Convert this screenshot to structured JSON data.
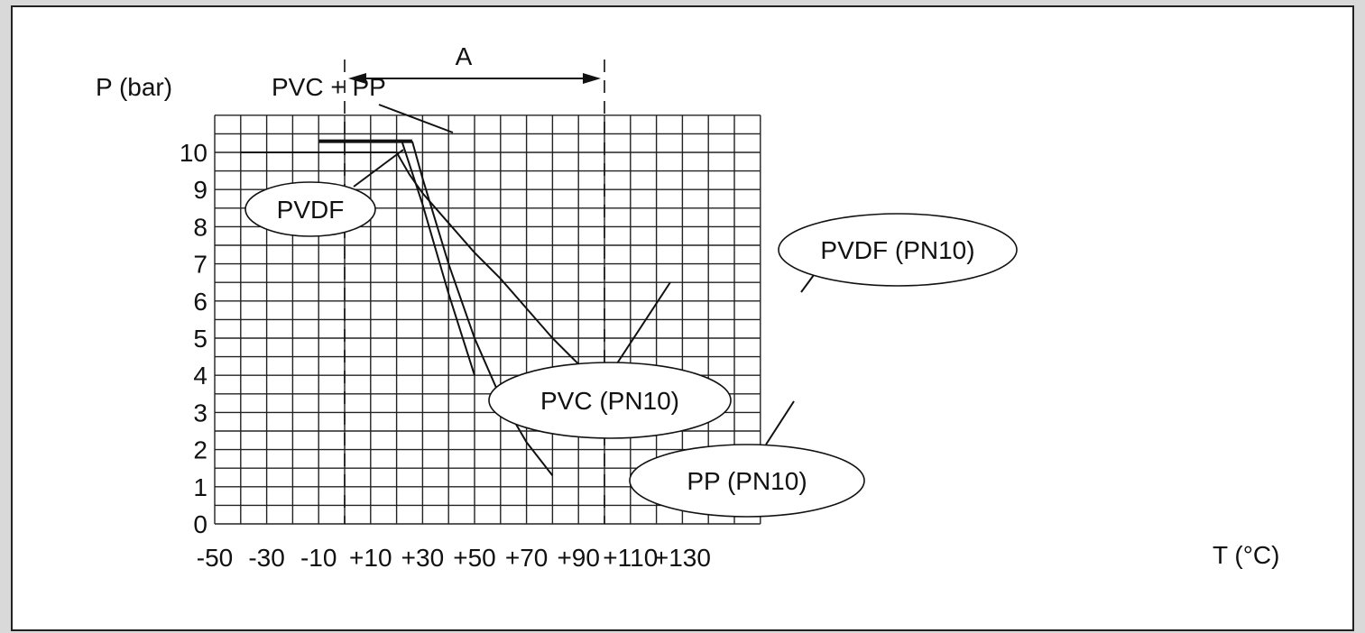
{
  "chart_data": {
    "type": "line",
    "xlabel": "T (°C)",
    "ylabel": "P (bar)",
    "xlim": [
      -50,
      160
    ],
    "ylim": [
      0,
      11
    ],
    "grid": true,
    "x_tick_values": [
      -50,
      -30,
      -10,
      10,
      30,
      50,
      70,
      90,
      110,
      130
    ],
    "x_tick_labels": [
      "-50",
      "-30",
      "-10",
      "+10",
      "+30",
      "+50",
      "+70",
      "+90",
      "+110",
      "+130"
    ],
    "y_tick_values": [
      0,
      1,
      2,
      3,
      4,
      5,
      6,
      7,
      8,
      9,
      10
    ],
    "y_tick_labels": [
      "0",
      "1",
      "2",
      "3",
      "4",
      "5",
      "6",
      "7",
      "8",
      "9",
      "10"
    ],
    "range_marker": {
      "label": "A",
      "from": 0,
      "to": 100
    },
    "series": [
      {
        "name": "PVDF",
        "x": [
          -40,
          20
        ],
        "y": [
          10,
          10
        ]
      },
      {
        "name": "PVC + PP",
        "x": [
          -10,
          26
        ],
        "y": [
          10.3,
          10.3
        ]
      },
      {
        "name": "PVDF (PN10)",
        "x": [
          20,
          25,
          30,
          40,
          50,
          60,
          70,
          80,
          90,
          100
        ],
        "y": [
          10,
          9.4,
          8.9,
          8.1,
          7.3,
          6.6,
          5.8,
          5.0,
          4.3,
          3.7
        ]
      },
      {
        "name": "PVC (PN10)",
        "x": [
          22,
          30,
          40,
          50
        ],
        "y": [
          10.3,
          8.6,
          6.2,
          4.0
        ]
      },
      {
        "name": "PP (PN10)",
        "x": [
          26,
          30,
          40,
          50,
          60,
          70,
          80
        ],
        "y": [
          10.3,
          9.3,
          7.0,
          5.0,
          3.4,
          2.2,
          1.3
        ]
      }
    ]
  }
}
